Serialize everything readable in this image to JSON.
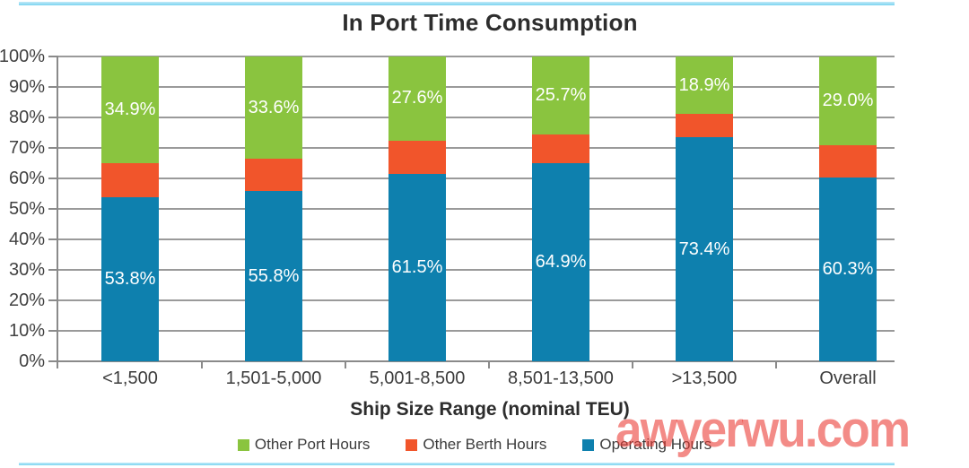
{
  "page": {
    "watermark": "awyerwu.com",
    "rule_color": "#7cd4f0",
    "watermark_color": "#eb372f"
  },
  "chart_data": {
    "type": "bar",
    "stacked": true,
    "title": "In Port Time Consumption",
    "xlabel": "Ship Size Range (nominal TEU)",
    "ylabel": "",
    "categories": [
      "<1,500",
      "1,501-5,000",
      "5,001-8,500",
      "8,501-13,500",
      ">13,500",
      "Overall"
    ],
    "y_axis": {
      "min": 0,
      "max": 100,
      "step": 10,
      "unit": "%",
      "tick_labels": [
        "100%",
        "90%",
        "80%",
        "70%",
        "60%",
        "50%",
        "40%",
        "30%",
        "20%",
        "10%",
        "0%"
      ],
      "note": "tick labels are partially cropped at the left edge of the image"
    },
    "grid": true,
    "gridline_color": "#9a9a9a",
    "legend_position": "bottom",
    "series": [
      {
        "name": "Operating Hours",
        "color": "#0e80ae",
        "values": [
          53.8,
          55.8,
          61.5,
          64.9,
          73.4,
          60.3
        ],
        "labels": [
          "53.8%",
          "55.8%",
          "61.5%",
          "64.9%",
          "73.4%",
          "60.3%"
        ]
      },
      {
        "name": "Other Berth Hours",
        "color": "#f1552b",
        "values": [
          11.3,
          10.6,
          10.9,
          9.4,
          7.7,
          10.7
        ],
        "labels": [
          "",
          "",
          "",
          "",
          "",
          ""
        ]
      },
      {
        "name": "Other Port Hours",
        "color": "#8ac43f",
        "values": [
          34.9,
          33.6,
          27.6,
          25.7,
          18.9,
          29.0
        ],
        "labels": [
          "34.9%",
          "33.6%",
          "27.6%",
          "25.7%",
          "18.9%",
          "29.0%"
        ]
      }
    ],
    "legend": [
      {
        "label": "Other Port Hours",
        "color": "#8ac43f"
      },
      {
        "label": "Other Berth Hours",
        "color": "#f1552b"
      },
      {
        "label": "Operating Hours",
        "color": "#0e80ae"
      }
    ]
  }
}
